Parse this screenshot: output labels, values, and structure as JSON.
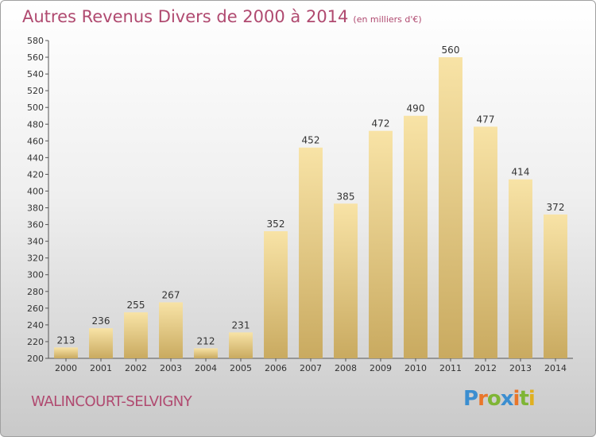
{
  "title": "Autres Revenus Divers de 2000 à 2014",
  "unit_note": "(en milliers d'€)",
  "location": "WALINCOURT-SELVIGNY",
  "logo": {
    "letters": [
      "P",
      "r",
      "o",
      "x",
      "i",
      "t",
      "i"
    ],
    "colors": [
      "#3b8ed0",
      "#e9762a",
      "#7fb535",
      "#3b8ed0",
      "#e9762a",
      "#7fb535",
      "#e0b020"
    ]
  },
  "colors": {
    "bar_light": "#f8e3a6",
    "bar_dark": "#c9aa60",
    "title": "#b04a70"
  },
  "chart_data": {
    "type": "bar",
    "categories": [
      "2000",
      "2001",
      "2002",
      "2003",
      "2004",
      "2005",
      "2006",
      "2007",
      "2008",
      "2009",
      "2010",
      "2011",
      "2012",
      "2013",
      "2014"
    ],
    "values": [
      213,
      236,
      255,
      267,
      212,
      231,
      352,
      452,
      385,
      472,
      490,
      560,
      477,
      414,
      372
    ],
    "title": "Autres Revenus Divers de 2000 à 2014",
    "xlabel": "",
    "ylabel": "",
    "ylim": [
      200,
      580
    ],
    "ytick_step": 20,
    "grid": false,
    "data_labels": true
  }
}
